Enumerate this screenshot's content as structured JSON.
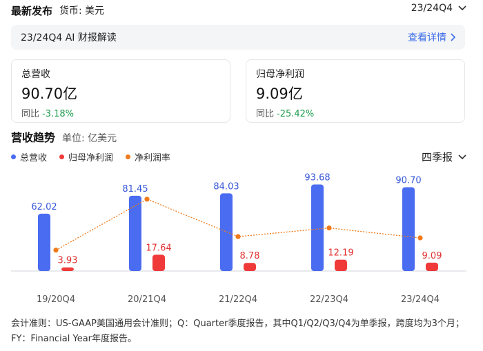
{
  "header": {
    "title": "最新发布",
    "currency": "货币: 美元",
    "period": "23/24Q4"
  },
  "ai_bar": {
    "title": "23/24Q4 AI 财报解读",
    "link": "查看详情"
  },
  "cards": {
    "revenue": {
      "label": "总营收",
      "value": "90.70亿",
      "yoy_label": "同比",
      "yoy": "-3.18%"
    },
    "net_income": {
      "label": "归母净利润",
      "value": "9.09亿",
      "yoy_label": "同比",
      "yoy": "-25.42%"
    }
  },
  "section": {
    "title": "营收趋势",
    "unit": "单位: 亿美元"
  },
  "legend": [
    {
      "name": "总营收",
      "color": "#4a6cf0"
    },
    {
      "name": "归母净利润",
      "color": "#f03a3a"
    },
    {
      "name": "净利润率",
      "color": "#f07a1a"
    }
  ],
  "frequency": "四季报",
  "colors": {
    "revenue": "#4a6cf0",
    "net_income": "#f03a3a",
    "margin": "#f07a1a",
    "link": "#3b6ce8",
    "negative": "#1a9a4c"
  },
  "chart_data": {
    "type": "bar",
    "categories": [
      "19/20Q4",
      "20/21Q4",
      "21/22Q4",
      "22/23Q4",
      "23/24Q4"
    ],
    "series": [
      {
        "name": "总营收",
        "values": [
          62.02,
          81.45,
          84.03,
          93.68,
          90.7
        ],
        "labels": [
          "62.02",
          "81.45",
          "84.03",
          "93.68",
          "90.70"
        ]
      },
      {
        "name": "归母净利润",
        "values": [
          3.93,
          17.64,
          8.78,
          12.19,
          9.09
        ],
        "labels": [
          "3.93",
          "17.64",
          "8.78",
          "12.19",
          "9.09"
        ]
      },
      {
        "name": "净利润率",
        "type": "line",
        "values": [
          6.3,
          21.7,
          10.4,
          13.0,
          10.0
        ]
      }
    ],
    "title": "营收趋势",
    "xlabel": "",
    "ylabel": "单位: 亿美元",
    "ylim": [
      0,
      100
    ],
    "grid": false,
    "legend_position": "top-left"
  },
  "footnote": "会计准则：US-GAAP美国通用会计准则；Q：Quarter季度报告，其中Q1/Q2/Q3/Q4为单季报，跨度均为3个月；FY：Financial Year年度报告。"
}
